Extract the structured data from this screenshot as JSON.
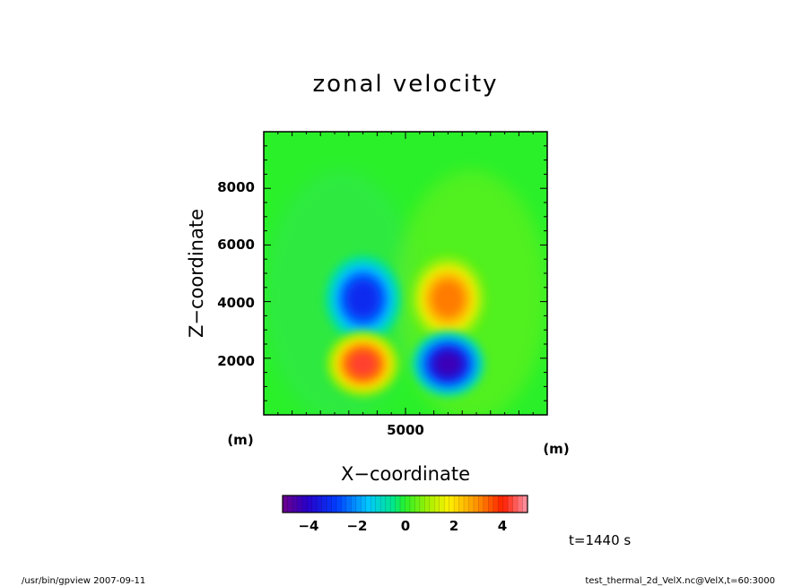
{
  "chart_data": {
    "type": "heatmap",
    "title": "zonal velocity",
    "xlabel": "X−coordinate",
    "ylabel": "Z−coordinate",
    "x_unit": "(m)",
    "y_unit": "(m)",
    "xlim": [
      0,
      10000
    ],
    "ylim": [
      0,
      10000
    ],
    "x_ticks": [
      5000
    ],
    "y_ticks": [
      2000,
      4000,
      6000,
      8000
    ],
    "colorbar": {
      "min": -5,
      "max": 5,
      "ticks": [
        -4,
        -2,
        0,
        2,
        4
      ],
      "colormap": "rainbow (purple-blue-cyan-green-yellow-red-pink)"
    },
    "features": [
      {
        "x": 3500,
        "z": 4100,
        "value": -3.5
      },
      {
        "x": 3500,
        "z": 1800,
        "value": 4.5
      },
      {
        "x": 6500,
        "z": 4100,
        "value": 3.5
      },
      {
        "x": 6500,
        "z": 1800,
        "value": -4.5
      }
    ],
    "time_label": "t=1440 s"
  },
  "footer": {
    "left": "/usr/bin/gpview   2007-09-11",
    "right": "test_thermal_2d_VelX.nc@VelX,t=60:3000"
  },
  "tick_labels": {
    "x": [
      "5000"
    ],
    "y": [
      "2000",
      "4000",
      "6000",
      "8000"
    ],
    "cb": [
      "−4",
      "−2",
      "0",
      "2",
      "4"
    ]
  },
  "colors": {
    "background_field": "#22ee22",
    "axis": "#000000"
  }
}
